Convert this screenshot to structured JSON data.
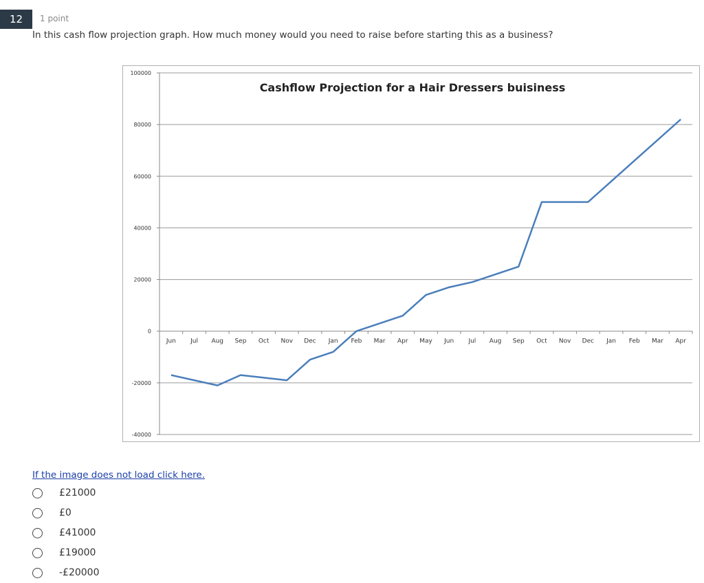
{
  "question": {
    "number": "12",
    "points": "1 point",
    "text": "In this cash flow projection graph. How much money would you need to raise before starting this as a business?",
    "image_link": "If the image does not load click here.",
    "options": [
      "£21000",
      "£0",
      "£41000",
      "£19000",
      "-£20000"
    ]
  },
  "chart_data": {
    "type": "line",
    "title": "Cashflow Projection for a Hair Dressers buisiness",
    "xlabel": "",
    "ylabel": "",
    "categories": [
      "Jun",
      "Jul",
      "Aug",
      "Sep",
      "Oct",
      "Nov",
      "Dec",
      "Jan",
      "Feb",
      "Mar",
      "Apr",
      "May",
      "Jun",
      "Jul",
      "Aug",
      "Sep",
      "Oct",
      "Nov",
      "Dec",
      "Jan",
      "Feb",
      "Mar",
      "Apr"
    ],
    "series": [
      {
        "values": [
          -17000,
          -19000,
          -21000,
          -17000,
          -18000,
          -19000,
          -11000,
          -8000,
          0,
          3000,
          6000,
          14000,
          17000,
          19000,
          22000,
          25000,
          50000,
          50000,
          50000,
          58000,
          66000,
          74000,
          82000
        ]
      }
    ],
    "ylim": [
      -40000,
      100000
    ],
    "yticks": [
      100000,
      80000,
      60000,
      40000,
      20000,
      0,
      -20000,
      -40000
    ],
    "grid": true,
    "legend": "none",
    "line_color": "#4a7ebb"
  }
}
